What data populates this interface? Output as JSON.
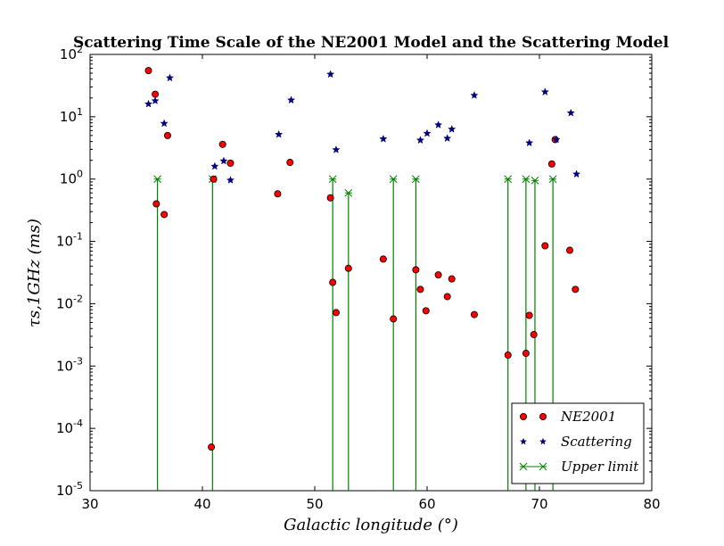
{
  "chart_data": {
    "type": "scatter",
    "title": "Scattering Time Scale of the NE2001 Model and the Scattering Model",
    "xlabel": "Galactic longitude (°)",
    "ylabel": "τs,1GHz (ms)",
    "xlim": [
      30,
      80
    ],
    "ylim_log10": [
      -5,
      2
    ],
    "yscale": "log",
    "x_ticks": [
      30,
      40,
      50,
      60,
      70,
      80
    ],
    "x_tick_labels": [
      "30",
      "40",
      "50",
      "60",
      "70",
      "80"
    ],
    "y_ticks_log10": [
      -5,
      -4,
      -3,
      -2,
      -1,
      0,
      1,
      2
    ],
    "y_tick_labels": [
      "10^-5",
      "10^-4",
      "10^-3",
      "10^-2",
      "10^-1",
      "10^0",
      "10^1",
      "10^2"
    ],
    "legend_position": "lower-right",
    "series": [
      {
        "name": "NE2001",
        "legend_label": "NE2001",
        "marker": "circle",
        "color": "#ff0000",
        "points": [
          {
            "x": 35.2,
            "y": 55
          },
          {
            "x": 35.8,
            "y": 23
          },
          {
            "x": 36.9,
            "y": 5.0
          },
          {
            "x": 35.9,
            "y": 0.4
          },
          {
            "x": 36.6,
            "y": 0.27
          },
          {
            "x": 41.0,
            "y": 1.0
          },
          {
            "x": 41.8,
            "y": 3.6
          },
          {
            "x": 42.5,
            "y": 1.8
          },
          {
            "x": 40.8,
            "y": 5e-05
          },
          {
            "x": 46.7,
            "y": 0.58
          },
          {
            "x": 47.8,
            "y": 1.85
          },
          {
            "x": 51.4,
            "y": 0.5
          },
          {
            "x": 51.6,
            "y": 0.022
          },
          {
            "x": 51.9,
            "y": 0.0072
          },
          {
            "x": 53.0,
            "y": 0.037
          },
          {
            "x": 56.1,
            "y": 0.052
          },
          {
            "x": 57.0,
            "y": 0.0057
          },
          {
            "x": 59.0,
            "y": 0.035
          },
          {
            "x": 59.4,
            "y": 0.017
          },
          {
            "x": 59.9,
            "y": 0.0077
          },
          {
            "x": 61.0,
            "y": 0.029
          },
          {
            "x": 61.8,
            "y": 0.013
          },
          {
            "x": 62.2,
            "y": 0.025
          },
          {
            "x": 64.2,
            "y": 0.0067
          },
          {
            "x": 67.2,
            "y": 0.0015
          },
          {
            "x": 68.8,
            "y": 0.0016
          },
          {
            "x": 69.1,
            "y": 0.0065
          },
          {
            "x": 69.5,
            "y": 0.0032
          },
          {
            "x": 70.5,
            "y": 0.085
          },
          {
            "x": 71.1,
            "y": 1.75
          },
          {
            "x": 71.4,
            "y": 4.3
          },
          {
            "x": 72.7,
            "y": 0.072
          },
          {
            "x": 73.2,
            "y": 0.017
          }
        ]
      },
      {
        "name": "Scattering",
        "legend_label": "Scattering",
        "marker": "star",
        "color": "#000080",
        "points": [
          {
            "x": 35.2,
            "y": 16
          },
          {
            "x": 35.8,
            "y": 18
          },
          {
            "x": 36.6,
            "y": 7.8
          },
          {
            "x": 37.1,
            "y": 42
          },
          {
            "x": 41.1,
            "y": 1.6
          },
          {
            "x": 41.9,
            "y": 1.95
          },
          {
            "x": 42.5,
            "y": 0.96
          },
          {
            "x": 46.8,
            "y": 5.2
          },
          {
            "x": 47.9,
            "y": 18.5
          },
          {
            "x": 51.4,
            "y": 48
          },
          {
            "x": 51.9,
            "y": 2.95
          },
          {
            "x": 56.1,
            "y": 4.4
          },
          {
            "x": 59.4,
            "y": 4.2
          },
          {
            "x": 60.0,
            "y": 5.4
          },
          {
            "x": 61.0,
            "y": 7.4
          },
          {
            "x": 61.8,
            "y": 4.5
          },
          {
            "x": 62.2,
            "y": 6.3
          },
          {
            "x": 64.2,
            "y": 22
          },
          {
            "x": 69.1,
            "y": 3.8
          },
          {
            "x": 70.5,
            "y": 25
          },
          {
            "x": 71.5,
            "y": 4.3
          },
          {
            "x": 72.8,
            "y": 11.5
          },
          {
            "x": 73.3,
            "y": 1.2
          }
        ]
      },
      {
        "name": "Upper limit",
        "legend_label": "Upper limit",
        "marker": "x-errorbar",
        "color": "#008000",
        "points": [
          {
            "x": 36.0,
            "y": 1.0
          },
          {
            "x": 40.9,
            "y": 1.0
          },
          {
            "x": 51.6,
            "y": 1.0
          },
          {
            "x": 53.0,
            "y": 0.6
          },
          {
            "x": 57.0,
            "y": 1.0
          },
          {
            "x": 59.0,
            "y": 1.0
          },
          {
            "x": 67.2,
            "y": 1.0
          },
          {
            "x": 68.8,
            "y": 1.0
          },
          {
            "x": 69.6,
            "y": 0.95
          },
          {
            "x": 71.2,
            "y": 1.0
          }
        ]
      }
    ]
  }
}
